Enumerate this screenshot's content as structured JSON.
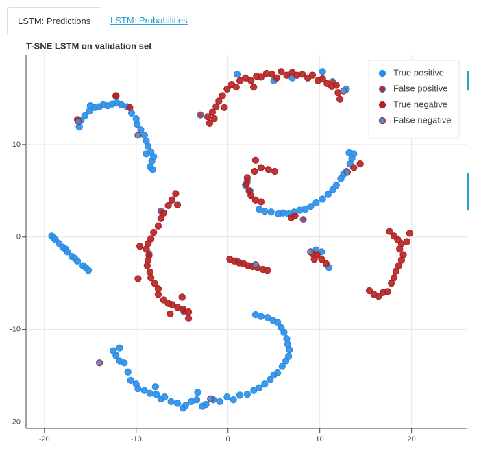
{
  "tabs": [
    "LSTM: Predictions",
    "LSTM: Probabilities"
  ],
  "chart_data": {
    "type": "scatter",
    "title": "T-SNE LSTM on validation set",
    "xlim": [
      -22.0,
      26.0
    ],
    "ylim": [
      -20.7,
      19.7
    ],
    "xticks": [
      -20,
      -10,
      0,
      10,
      20
    ],
    "yticks": [
      -20,
      -10,
      0,
      10
    ],
    "grid": true,
    "legend": "top_right",
    "series": [
      {
        "name": "True positive",
        "color": "#2b8de6",
        "edge_color": "#2b8de6",
        "x": [
          -16.2,
          -16.0,
          -15.6,
          -15.1,
          -15.0,
          -14.5,
          -14.0,
          -13.6,
          -13.1,
          -12.6,
          -12.1,
          -11.6,
          -11.0,
          -10.5,
          -10.0,
          -9.9,
          -9.5,
          -9.1,
          -8.9,
          -8.7,
          -8.4,
          -8.1,
          -8.3,
          -8.5,
          -8.2,
          -8.9,
          -19.2,
          -18.8,
          -18.4,
          -18.0,
          -17.5,
          -17.0,
          -16.4,
          -15.8,
          -15.2,
          -19.0,
          -17.7,
          -16.7,
          -15.5,
          -12.5,
          -12.2,
          -11.8,
          -11.3,
          -11.8,
          -10.9,
          -10.6,
          -10.0,
          -9.8,
          -9.1,
          -8.5,
          -7.8,
          -7.3,
          -6.9,
          -6.2,
          -5.5,
          -4.9,
          -4.6,
          -4.0,
          -3.4,
          -2.8,
          -2.4,
          -1.6,
          -0.9,
          -0.1,
          0.6,
          1.3,
          2.1,
          2.8,
          3.4,
          4.0,
          4.6,
          5.0,
          5.4,
          5.9,
          6.3,
          6.6,
          6.7,
          6.5,
          6.4,
          6.1,
          5.8,
          5.4,
          4.9,
          4.3,
          3.6,
          3.0,
          -3.3,
          -7.9,
          3.4,
          4.0,
          4.7,
          5.5,
          6.0,
          6.6,
          7.2,
          7.8,
          8.4,
          9.0,
          9.6,
          10.3,
          10.9,
          11.4,
          11.8,
          12.3,
          12.6,
          12.9,
          13.3,
          13.5,
          13.7,
          13.2,
          1.9,
          2.4,
          12.9,
          10.3,
          7.0,
          5.0,
          1.0,
          9.6,
          10.2,
          11.0
        ],
        "values": [
          11.9,
          12.6,
          13.1,
          13.6,
          14.2,
          14.0,
          14.1,
          14.3,
          14.2,
          14.4,
          14.5,
          14.3,
          14.1,
          13.4,
          12.8,
          12.2,
          11.6,
          11.0,
          10.4,
          9.8,
          9.2,
          8.7,
          8.2,
          7.6,
          7.3,
          9.0,
          0.1,
          -0.3,
          -0.7,
          -1.1,
          -1.6,
          -2.1,
          -2.6,
          -3.1,
          -3.6,
          -0.1,
          -1.3,
          -2.3,
          -3.3,
          -12.3,
          -12.8,
          -13.4,
          -13.6,
          -12.0,
          -14.6,
          -15.5,
          -15.9,
          -16.4,
          -16.6,
          -16.9,
          -17.0,
          -17.5,
          -17.3,
          -17.8,
          -18.0,
          -18.5,
          -18.2,
          -17.8,
          -17.6,
          -18.3,
          -18.1,
          -17.6,
          -17.8,
          -17.3,
          -17.6,
          -17.1,
          -17.0,
          -16.6,
          -16.3,
          -15.9,
          -15.4,
          -14.9,
          -14.7,
          -14.0,
          -13.4,
          -12.9,
          -12.2,
          -11.6,
          -11.0,
          -10.3,
          -9.8,
          -9.2,
          -9.0,
          -8.7,
          -8.6,
          -8.4,
          -16.8,
          -16.2,
          3.0,
          2.8,
          2.7,
          2.5,
          2.6,
          2.5,
          2.7,
          2.9,
          3.0,
          3.3,
          3.7,
          4.1,
          4.6,
          5.1,
          5.6,
          6.3,
          6.8,
          7.1,
          7.9,
          8.5,
          9.0,
          9.1,
          5.6,
          5.0,
          16.0,
          17.9,
          17.2,
          16.9,
          17.6,
          -1.4,
          -1.6,
          -3.3
        ]
      },
      {
        "name": "False positive",
        "color": "#b22a2a",
        "edge_color": "#4a7fd8",
        "x": [
          -12.2,
          2.1,
          -7.3,
          -8.6,
          1.0,
          11.4,
          8.2,
          -3.0,
          -4.8
        ],
        "values": [
          15.2,
          6.0,
          2.8,
          -1.8,
          -2.6,
          16.8,
          1.9,
          13.2,
          -8.1
        ]
      },
      {
        "name": "True negative",
        "color": "#b22222",
        "edge_color": "#b22222",
        "x": [
          -2.0,
          -2.2,
          -1.7,
          -1.3,
          -1.0,
          -0.6,
          -0.1,
          0.4,
          0.9,
          1.3,
          1.9,
          2.5,
          3.1,
          3.6,
          4.2,
          4.8,
          5.3,
          5.8,
          6.4,
          7.0,
          7.5,
          8.1,
          8.7,
          9.2,
          9.8,
          10.3,
          10.8,
          11.3,
          11.8,
          12.0,
          12.2,
          -1.5,
          -0.4,
          2.8,
          5.1,
          4.4,
          3.6,
          2.9,
          2.1,
          2.0,
          2.3,
          2.5,
          3.0,
          3.6,
          6.9,
          7.3,
          14.4,
          13.7,
          3.0,
          -5.7,
          -6.1,
          -6.5,
          -7.0,
          -7.3,
          -7.6,
          -8.1,
          -8.4,
          -8.7,
          -8.9,
          -8.6,
          -8.7,
          -8.8,
          -8.5,
          -8.4,
          -8.0,
          -7.6,
          -7.6,
          -7.0,
          -6.5,
          -6.1,
          -5.5,
          -4.9,
          -4.3,
          -4.3,
          -6.3,
          -5.0,
          -5.5,
          -9.6,
          -9.8,
          0.2,
          0.7,
          1.2,
          1.7,
          2.2,
          2.7,
          3.2,
          3.8,
          4.3,
          9.2,
          9.7,
          10.2,
          10.7,
          9.4,
          17.6,
          18.1,
          18.5,
          18.9,
          18.7,
          19.1,
          18.9,
          18.6,
          18.3,
          18.1,
          17.8,
          17.4,
          16.9,
          16.4,
          15.9,
          15.4,
          19.8,
          19.5,
          -12.2,
          -16.4,
          -10.7
        ],
        "values": [
          12.3,
          13.0,
          13.5,
          14.1,
          14.7,
          15.3,
          16.0,
          16.5,
          16.2,
          16.9,
          17.2,
          16.9,
          17.4,
          17.3,
          17.7,
          17.6,
          17.2,
          17.9,
          17.5,
          17.8,
          17.5,
          17.6,
          17.2,
          17.5,
          16.9,
          17.1,
          16.6,
          16.3,
          16.4,
          15.6,
          14.9,
          12.8,
          14.0,
          16.2,
          7.1,
          7.3,
          7.5,
          7.1,
          6.4,
          5.7,
          5.0,
          4.5,
          4.0,
          3.8,
          2.1,
          2.3,
          7.9,
          7.5,
          8.3,
          4.7,
          4.0,
          3.4,
          2.6,
          2.0,
          1.2,
          0.5,
          -0.2,
          -0.7,
          -1.3,
          -2.0,
          -2.5,
          -3.1,
          -3.8,
          -4.4,
          -5.0,
          -5.6,
          -6.2,
          -6.8,
          -7.2,
          -7.3,
          -7.6,
          -7.8,
          -8.1,
          -8.8,
          -8.3,
          -6.5,
          3.5,
          -1.0,
          -4.5,
          -2.4,
          -2.6,
          -2.8,
          -2.9,
          -3.1,
          -3.2,
          -3.3,
          -3.5,
          -3.6,
          -1.8,
          -1.9,
          -2.4,
          -2.9,
          -2.4,
          0.6,
          0.1,
          -0.3,
          -0.7,
          -1.3,
          -1.9,
          -2.5,
          -3.1,
          -3.7,
          -4.4,
          -5.0,
          -5.9,
          -6.0,
          -6.4,
          -6.2,
          -5.8,
          0.4,
          -0.5,
          15.3,
          12.7,
          14.0
        ]
      },
      {
        "name": "False negative",
        "color": "#3a8ee0",
        "edge_color": "#b22a2a",
        "x": [
          -16.3,
          -9.8,
          12.6,
          9.0,
          3.0,
          -1.9,
          13.0,
          -14.0
        ],
        "values": [
          12.5,
          11.0,
          15.8,
          -1.6,
          -3.0,
          -17.5,
          7.0,
          -13.6
        ]
      }
    ]
  }
}
